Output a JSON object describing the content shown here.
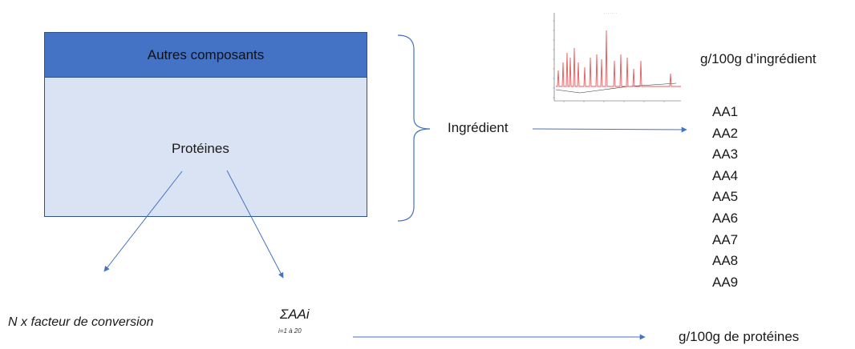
{
  "diagram": {
    "top_box_label": "Autres composants",
    "bottom_box_label": "Protéines",
    "ingredient_label": "Ingrédient",
    "per_ingredient_label": "g/100g d’ingrédient",
    "amino_acids": [
      "AA1",
      "AA2",
      "AA3",
      "AA4",
      "AA5",
      "AA6",
      "AA7",
      "AA8",
      "AA9"
    ],
    "nitrogen_label": "N x facteur de conversion",
    "sum_label": "ΣAAi",
    "sum_sub_label": "i=1 à 20",
    "per_protein_label": "g/100g de protéines"
  },
  "colors": {
    "top_box": "#4472c4",
    "bottom_box": "#dae3f3",
    "arrow": "#4472c4",
    "chromatogram_peak": "#e8585a"
  },
  "icons": [
    "chromatogram-thumbnail"
  ]
}
